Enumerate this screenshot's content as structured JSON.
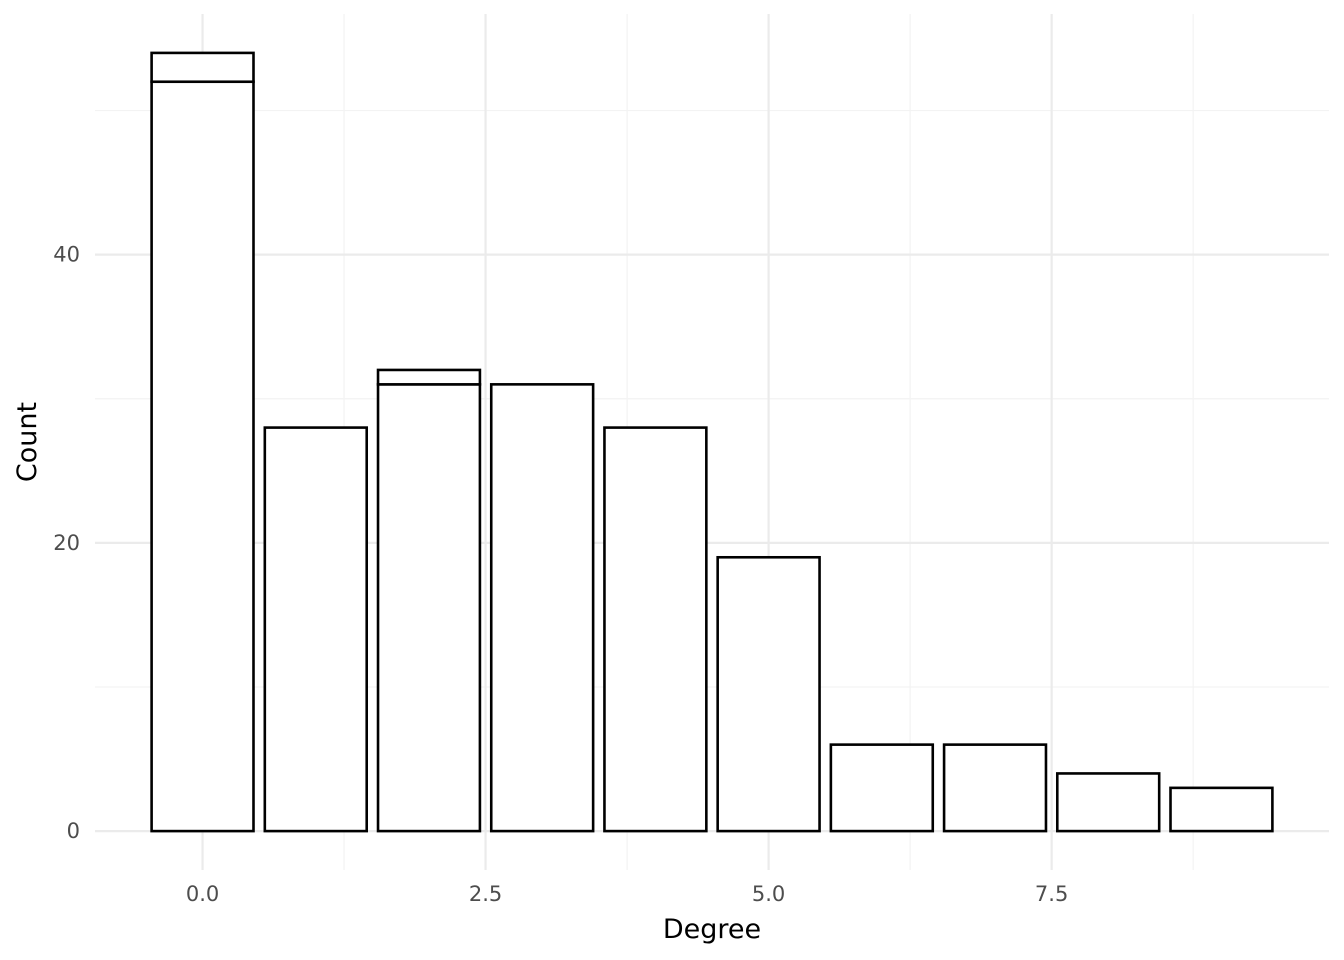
{
  "chart_data": {
    "type": "bar",
    "xlabel": "Degree",
    "ylabel": "Count",
    "x_ticks": [
      "0.0",
      "2.5",
      "5.0",
      "7.5"
    ],
    "x_tick_values": [
      0,
      2.5,
      5,
      7.5
    ],
    "y_ticks": [
      "0",
      "20",
      "40"
    ],
    "y_tick_values": [
      0,
      20,
      40
    ],
    "xlim": [
      -0.95,
      9.95
    ],
    "ylim": [
      -2.7,
      56.7
    ],
    "x": [
      0,
      1,
      2,
      3,
      4,
      5,
      6,
      7,
      8,
      9
    ],
    "series": [
      {
        "values": [
          52,
          28,
          31,
          31,
          28,
          19,
          6,
          6,
          4,
          3
        ]
      },
      {
        "values": [
          2,
          0,
          1,
          0,
          0,
          0,
          0,
          0,
          0,
          0
        ]
      }
    ],
    "grid": true,
    "legend": "none"
  }
}
